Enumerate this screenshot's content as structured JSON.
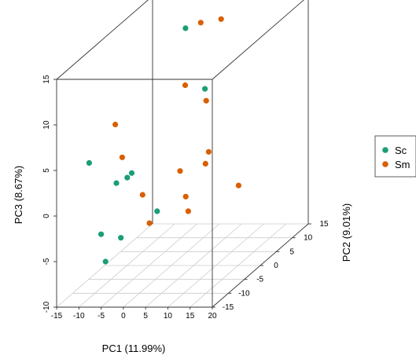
{
  "chart_data": {
    "type": "scatter",
    "subtype": "3d-scatter-box",
    "xlabel": "PC1 (11.99%)",
    "ylabel": "PC2 (9.01%)",
    "zlabel": "PC3 (8.67%)",
    "xlim": [
      -15,
      20
    ],
    "ylim": [
      -15,
      15
    ],
    "zlim": [
      -10,
      15
    ],
    "x_ticks": [
      -15,
      -10,
      -5,
      0,
      5,
      10,
      15,
      20
    ],
    "y_ticks": [
      -15,
      -10,
      -5,
      0,
      5,
      10,
      15
    ],
    "z_ticks": [
      -10,
      -5,
      0,
      5,
      10,
      15
    ],
    "grid": true,
    "legend_position": "right",
    "colors": {
      "Sc": "#1b9e77",
      "Sm": "#d95f02",
      "box": "#333333",
      "grid": "#cccccc"
    },
    "series": [
      {
        "name": "Sc",
        "points": [
          {
            "x": -4,
            "y": 10,
            "z": 13
          },
          {
            "x": 9,
            "y": -2,
            "z": 10
          },
          {
            "x": -12,
            "y": -9,
            "z": 4
          },
          {
            "x": -3,
            "y": -13,
            "z": 3
          },
          {
            "x": -1,
            "y": -11,
            "z": 3.5
          },
          {
            "x": -2,
            "y": -11,
            "z": 3
          },
          {
            "x": 4,
            "y": -10,
            "z": -1
          },
          {
            "x": -5,
            "y": -15,
            "z": -2
          },
          {
            "x": -2,
            "y": -13,
            "z": -3
          },
          {
            "x": -4,
            "y": -15,
            "z": -5
          }
        ]
      },
      {
        "name": "Sm",
        "points": [
          {
            "x": 4,
            "y": 10,
            "z": 14
          },
          {
            "x": -2,
            "y": 12,
            "z": 13
          },
          {
            "x": 6,
            "y": -4,
            "z": 11
          },
          {
            "x": 10,
            "y": -3,
            "z": 9
          },
          {
            "x": -9,
            "y": -5,
            "z": 7
          },
          {
            "x": -6,
            "y": -7,
            "z": 4
          },
          {
            "x": 7,
            "y": -7,
            "z": 2.5
          },
          {
            "x": 12,
            "y": -5,
            "z": 4
          },
          {
            "x": 12,
            "y": -6,
            "z": 3
          },
          {
            "x": 18,
            "y": -4,
            "z": 0
          },
          {
            "x": 9,
            "y": -8,
            "z": 0
          },
          {
            "x": 11,
            "y": -10,
            "z": -1
          },
          {
            "x": 0,
            "y": -9,
            "z": 0.5
          },
          {
            "x": 3,
            "y": -11,
            "z": -2
          }
        ]
      }
    ]
  }
}
